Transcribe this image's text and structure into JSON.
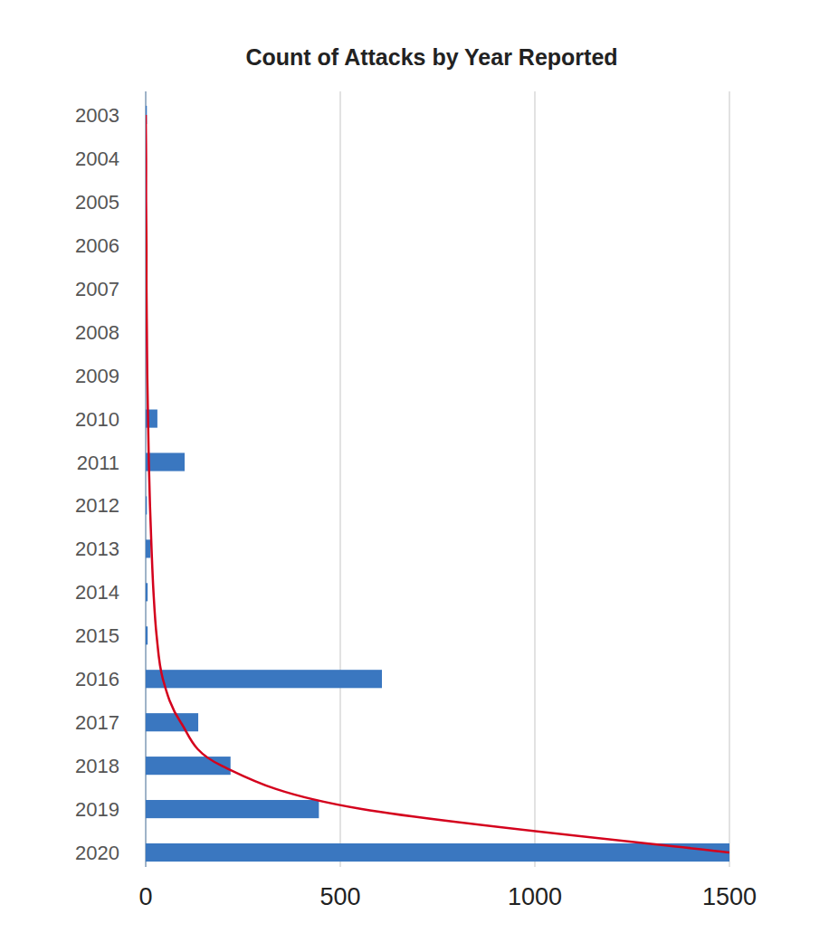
{
  "chart_data": {
    "type": "bar",
    "title": "Count of Attacks by Year Reported",
    "orientation": "horizontal",
    "categories": [
      "2003",
      "2004",
      "2005",
      "2006",
      "2007",
      "2008",
      "2009",
      "2010",
      "2011",
      "2012",
      "2013",
      "2014",
      "2015",
      "2016",
      "2017",
      "2018",
      "2019",
      "2020"
    ],
    "series": [
      {
        "type": "bar",
        "color": "#3a77c0",
        "values": [
          3,
          0,
          0,
          0,
          0,
          0,
          0,
          30,
          100,
          3,
          12,
          5,
          5,
          607,
          135,
          218,
          445,
          1500
        ]
      },
      {
        "type": "line",
        "color": "#d4021d",
        "values": [
          0,
          1,
          1,
          2,
          2,
          3,
          4,
          6,
          8,
          11,
          15,
          20,
          28,
          44,
          90,
          195,
          555,
          1500
        ]
      }
    ],
    "xlim": [
      0,
      1500
    ],
    "xticks": [
      0,
      500,
      1000,
      1500
    ],
    "grid": true
  }
}
